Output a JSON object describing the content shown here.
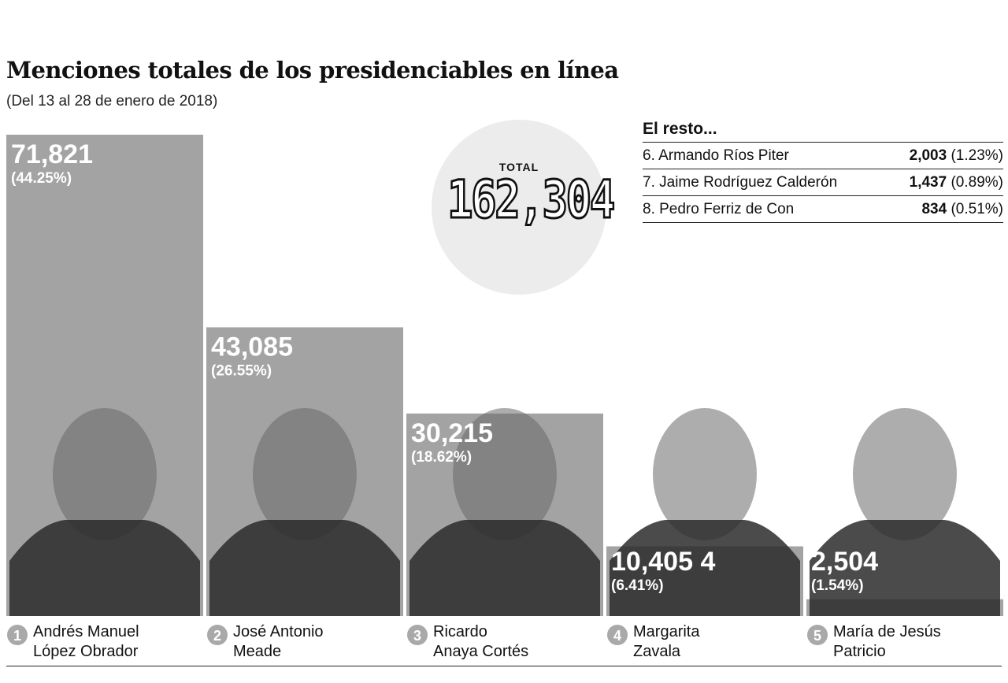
{
  "title": "Menciones totales de los presidenciables en línea",
  "subtitle": "(Del 13 al 28 de enero de 2018)",
  "total": {
    "label": "TOTAL",
    "value": "162,304"
  },
  "rest": {
    "title": "El resto...",
    "rows": [
      {
        "name": "6. Armando Ríos Piter",
        "value": "2,003",
        "pct": "(1.23%)"
      },
      {
        "name": "7. Jaime Rodríguez Calderón",
        "value": "1,437",
        "pct": "(0.89%)"
      },
      {
        "name": "8. Pedro Ferriz de Con",
        "value": "834",
        "pct": "(0.51%)"
      }
    ]
  },
  "chart_data": {
    "type": "bar",
    "categories": [
      "Andrés Manuel López Obrador",
      "José Antonio Meade",
      "Ricardo Anaya Cortés",
      "Margarita Zavala",
      "María de Jesús Patricio"
    ],
    "values": [
      71821,
      43085,
      30215,
      10405,
      2504
    ],
    "value_labels": [
      "71,821",
      "43,085",
      "30,215",
      "10,405 4",
      "2,504"
    ],
    "percent_labels": [
      "(44.25%)",
      "(26.55%)",
      "(18.62%)",
      "(6.41%)",
      "(1.54%)"
    ],
    "ranks": [
      "1",
      "2",
      "3",
      "4",
      "5"
    ],
    "name_lines": [
      [
        "Andrés Manuel",
        "López Obrador"
      ],
      [
        "José Antonio",
        "Meade"
      ],
      [
        "Ricardo",
        "Anaya Cortés"
      ],
      [
        "Margarita",
        "Zavala"
      ],
      [
        "María de Jesús",
        "Patricio"
      ]
    ],
    "ylim": [
      0,
      71821
    ],
    "grid": false,
    "colors": {
      "bar": "#a3a3a3",
      "portrait": "#2b2b2b",
      "label": "#ffffff",
      "badge": "#a9a9a9"
    }
  }
}
